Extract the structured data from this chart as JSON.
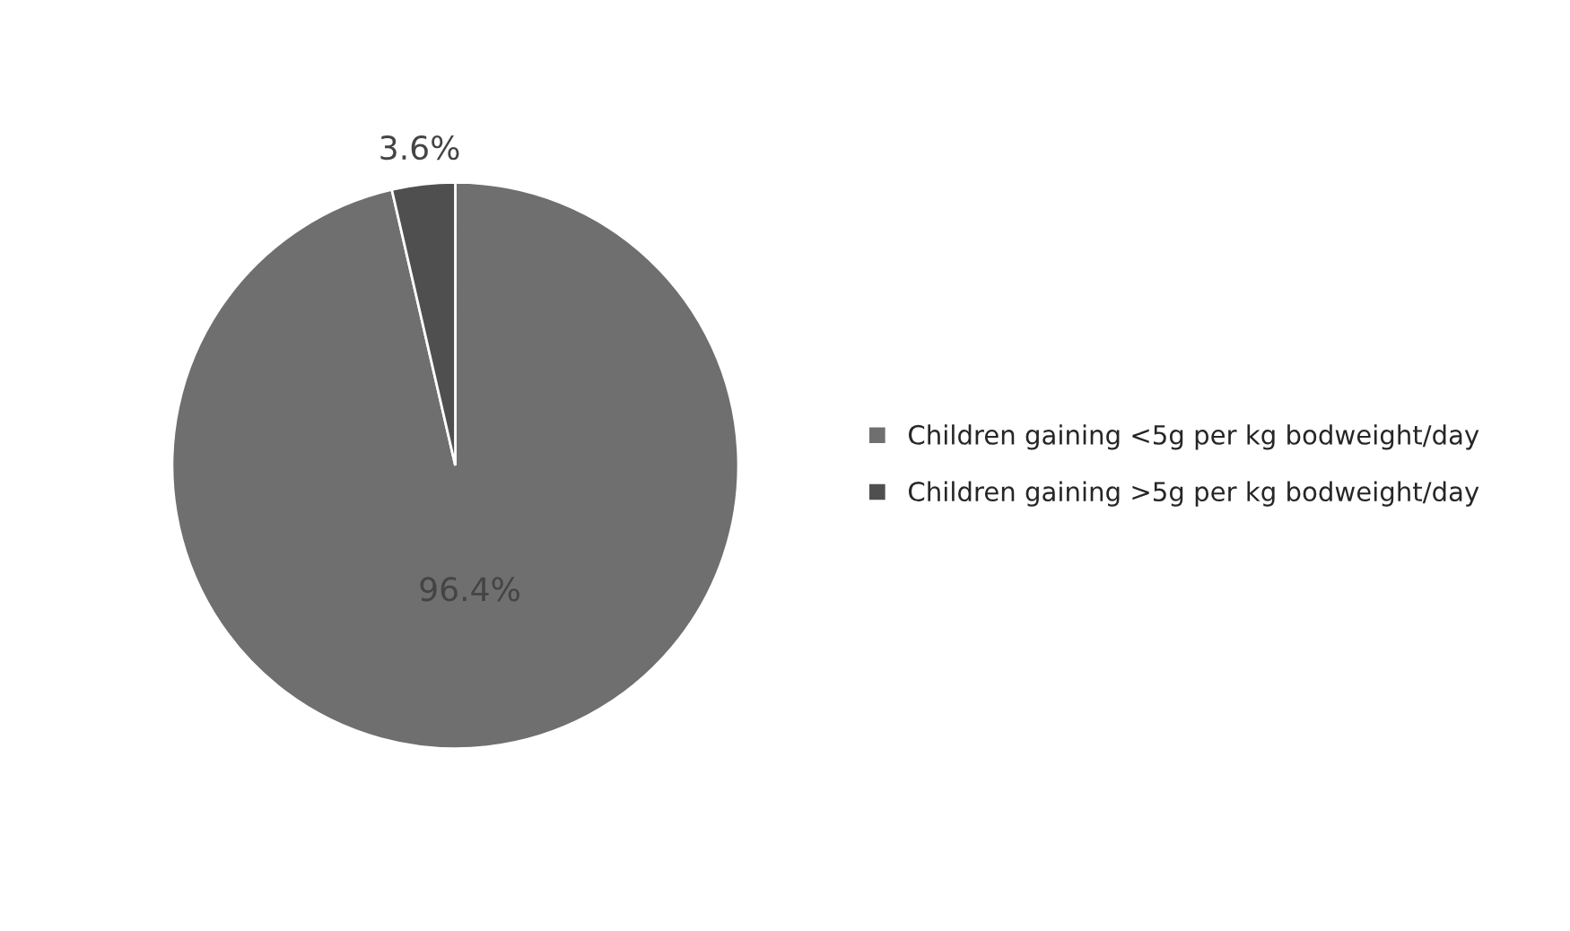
{
  "chart_data": {
    "type": "pie",
    "categories": [
      "Children gaining <5g per kg bodweight/day",
      "Children gaining >5g per kg bodweight/day"
    ],
    "values": [
      96.4,
      3.6
    ],
    "colors": [
      "#6f6f6f",
      "#4f4f4f"
    ],
    "value_labels": [
      "96.4%",
      "3.6%"
    ],
    "legend": "right"
  }
}
